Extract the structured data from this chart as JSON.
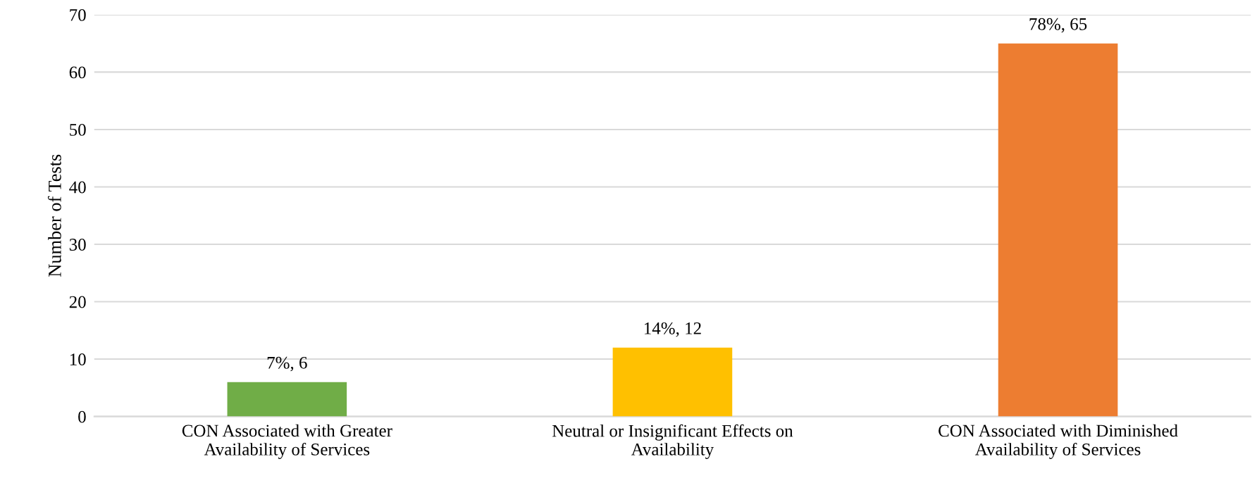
{
  "chart_data": {
    "type": "bar",
    "ylabel": "Number of Tests",
    "categories": [
      "CON Associated with Greater\nAvailability of Services",
      "Neutral or Insignificant Effects on\nAvailability",
      "CON Associated with Diminished\nAvailability of Services"
    ],
    "values": [
      6,
      12,
      65
    ],
    "colors": [
      "#70ad47",
      "#ffc000",
      "#ed7d31"
    ],
    "value_labels": [
      "7%, 6",
      "14%, 12",
      "78%, 65"
    ],
    "ylim": [
      0,
      70
    ],
    "yticks": [
      0,
      10,
      20,
      30,
      40,
      50,
      60,
      70
    ],
    "grid": "y"
  }
}
